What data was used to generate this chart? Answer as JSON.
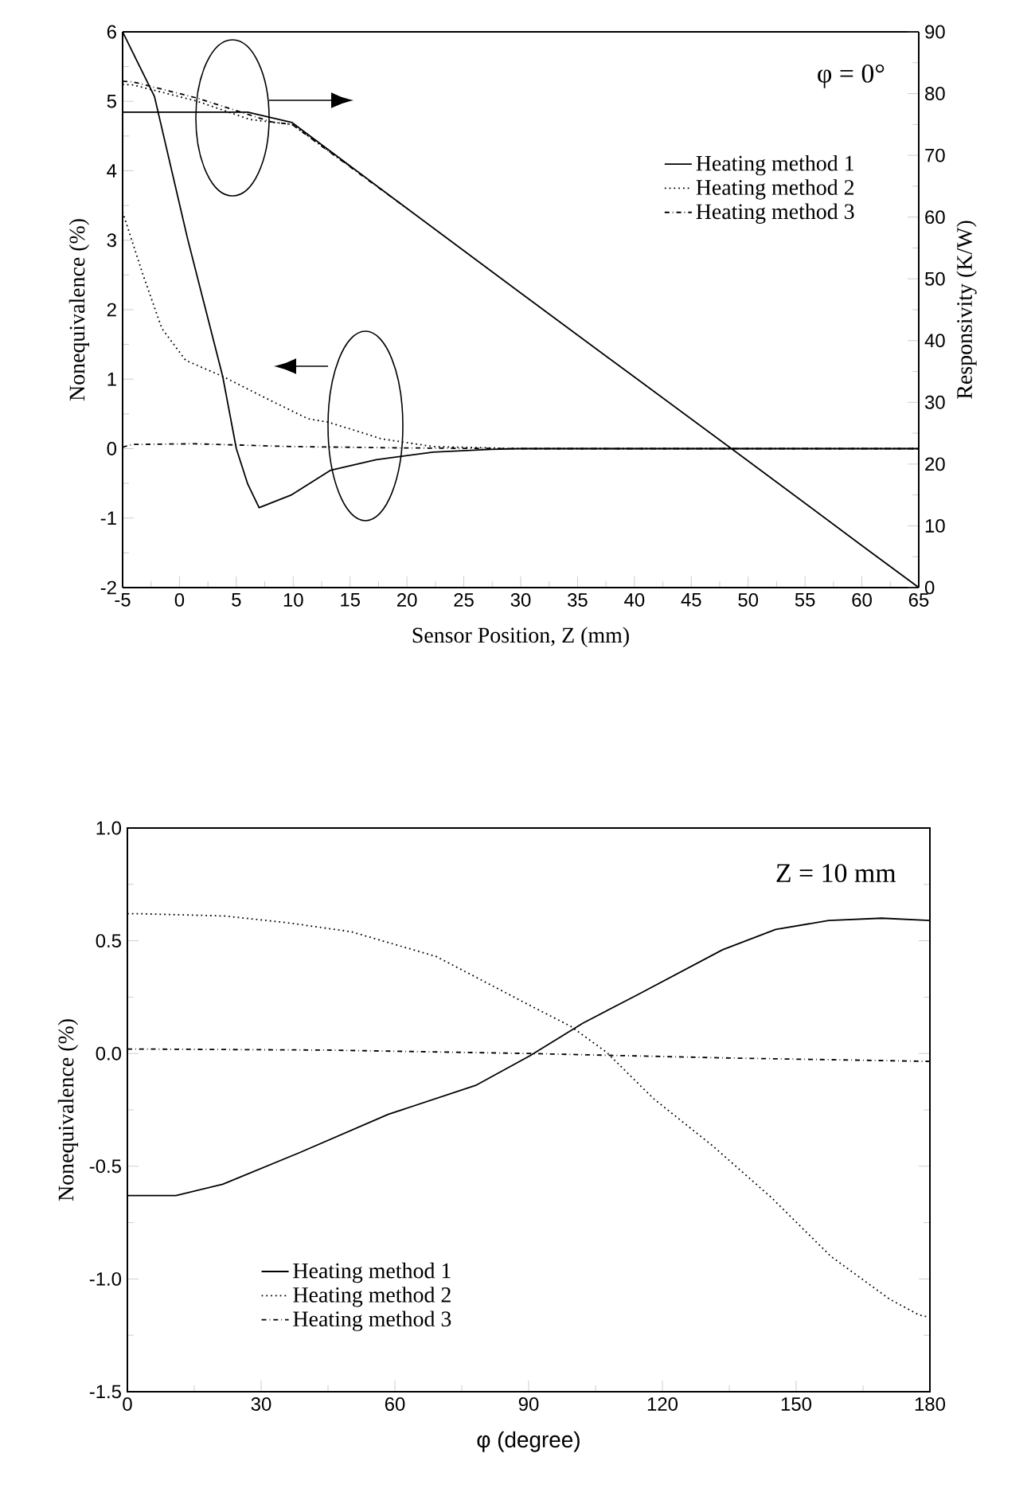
{
  "chart_data": [
    {
      "type": "line",
      "xlabel": "Sensor Position, Z (mm)",
      "ylabel": "Nonequivalence (%)",
      "y2label": "Responsivity (K/W)",
      "annotations": [
        "φ = 0°"
      ],
      "xlim": [
        -5,
        65
      ],
      "xticks": [
        -5,
        0,
        5,
        10,
        15,
        20,
        25,
        30,
        35,
        40,
        45,
        50,
        55,
        60,
        65
      ],
      "ylim": [
        -2,
        6
      ],
      "yticks": [
        -2,
        -1,
        0,
        1,
        2,
        3,
        4,
        5,
        6
      ],
      "y2lim": [
        0,
        90
      ],
      "y2ticks": [
        0,
        10,
        20,
        30,
        40,
        50,
        60,
        70,
        80,
        90
      ],
      "legend": "top right",
      "marker": "none",
      "series": [
        {
          "name": "Heating method 1",
          "color": "#000000",
          "line_style": "solid",
          "x": [
            -5,
            -2.2,
            0.7,
            3.8,
            5,
            6,
            7,
            9.8,
            13.3,
            17.3,
            22.3,
            27.4,
            30,
            65
          ],
          "values": [
            6,
            5.07,
            3.03,
            1.04,
            0,
            -0.51,
            -0.85,
            -0.67,
            -0.31,
            -0.16,
            -0.05,
            -0.01,
            0,
            0
          ]
        },
        {
          "name": "Heating method 2",
          "color": "#000000",
          "line_style": "dotted",
          "x": [
            -5,
            -3.2,
            -1.55,
            0.55,
            3.8,
            7.55,
            11.3,
            13.1,
            17.8,
            22.3,
            30,
            65
          ],
          "values": [
            3.41,
            2.5,
            1.73,
            1.27,
            1.04,
            0.73,
            0.43,
            0.38,
            0.14,
            0.03,
            0,
            0
          ]
        },
        {
          "name": "Heating method 3",
          "color": "#000000",
          "line_style": "dashdot",
          "x": [
            -5,
            -4.2,
            1.3,
            9.8,
            19.8,
            30,
            65
          ],
          "values": [
            0.02,
            0.06,
            0.07,
            0.03,
            0.01,
            0,
            0
          ]
        },
        {
          "color": "#000000",
          "line_style": "solid",
          "axis": "y2",
          "x": [
            -5,
            0,
            5,
            6,
            9.9,
            20,
            30,
            40,
            50,
            60,
            65
          ],
          "values": [
            77,
            77,
            77,
            77,
            75.3,
            61.4,
            47.7,
            34.1,
            20.5,
            6.8,
            0
          ]
        },
        {
          "color": "#000000",
          "line_style": "dotted",
          "axis": "y2",
          "x": [
            -5,
            -4.1,
            1.5,
            6.2,
            9.9,
            15
          ],
          "values": [
            81.5,
            81.4,
            78.8,
            75.8,
            75,
            68.2
          ]
        },
        {
          "color": "#000000",
          "line_style": "dashdot",
          "axis": "y2",
          "x": [
            -5,
            -4.1,
            1.5,
            8.1,
            9.9,
            20
          ],
          "values": [
            82,
            81.9,
            79.3,
            75.4,
            75,
            61.4
          ]
        }
      ]
    },
    {
      "type": "line",
      "xlabel": "φ (degree)",
      "ylabel": "Nonequivalence (%)",
      "annotations": [
        "Z = 10 mm"
      ],
      "xlim": [
        0,
        180
      ],
      "xticks": [
        0,
        30,
        60,
        90,
        120,
        150,
        180
      ],
      "ylim": [
        -1.5,
        1.0
      ],
      "yticks": [
        {
          "value": -1.5,
          "label": "-1.5"
        },
        {
          "value": -1.0,
          "label": "-1.0"
        },
        {
          "value": -0.5,
          "label": "-0.5"
        },
        {
          "value": 0,
          "label": "0.0"
        },
        {
          "value": 0.5,
          "label": "0.5"
        },
        {
          "value": 1.0,
          "label": "1.0"
        }
      ],
      "legend": "bottom left",
      "marker": "none",
      "series": [
        {
          "name": "Heating method 1",
          "color": "#000000",
          "line_style": "solid",
          "x": [
            0,
            10.9,
            21.4,
            38.6,
            58.5,
            78.3,
            90.3,
            102.2,
            114.4,
            133.5,
            145.4,
            157.3,
            169.2,
            180
          ],
          "values": [
            -0.63,
            -0.63,
            -0.58,
            -0.44,
            -0.27,
            -0.14,
            -0.01,
            0.135,
            0.26,
            0.46,
            0.55,
            0.59,
            0.6,
            0.59
          ]
        },
        {
          "name": "Heating method 2",
          "color": "#000000",
          "line_style": "dotted",
          "x": [
            0,
            2.6,
            21.7,
            35.9,
            50.2,
            69.3,
            90.6,
            99.5,
            107.5,
            118,
            131.3,
            144.5,
            157.8,
            171,
            177.6,
            180
          ],
          "values": [
            0.62,
            0.62,
            0.61,
            0.58,
            0.54,
            0.43,
            0.21,
            0.12,
            0.005,
            -0.2,
            -0.41,
            -0.64,
            -0.9,
            -1.09,
            -1.16,
            -1.17
          ]
        },
        {
          "name": "Heating method 3",
          "color": "#000000",
          "line_style": "dashdot",
          "x": [
            0,
            45,
            90,
            135,
            180
          ],
          "values": [
            0.02,
            0.015,
            0,
            -0.02,
            -0.035
          ]
        }
      ]
    }
  ]
}
